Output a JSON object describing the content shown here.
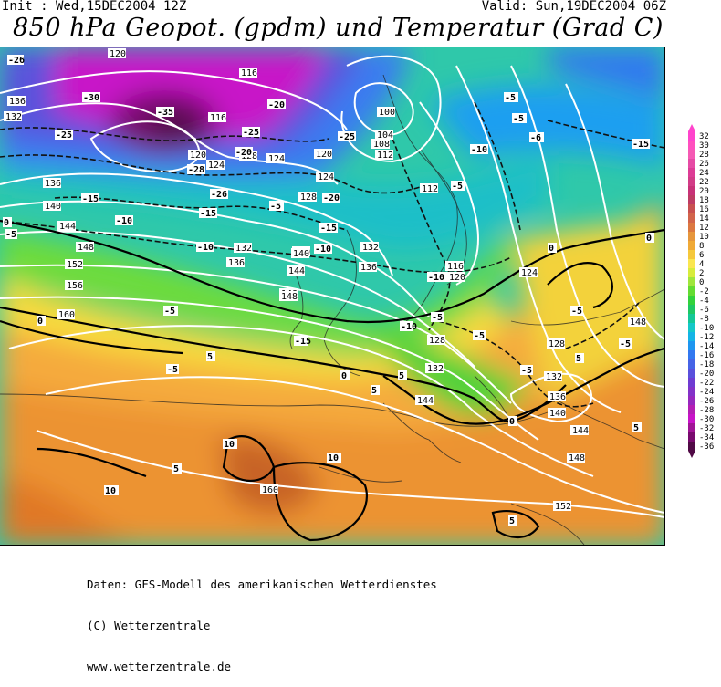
{
  "header": {
    "init": "Init : Wed,15DEC2004 12Z",
    "valid": "Valid: Sun,19DEC2004 06Z",
    "title": "850 hPa Geopot. (gpdm) und Temperatur (Grad C)"
  },
  "footer": {
    "line1": "Daten: GFS-Modell des amerikanischen Wetterdienstes",
    "line2": "(C) Wetterzentrale",
    "line3": "www.wetterzentrale.de"
  },
  "legend": {
    "values": [
      "32",
      "30",
      "28",
      "26",
      "24",
      "22",
      "20",
      "18",
      "16",
      "14",
      "12",
      "10",
      "8",
      "6",
      "4",
      "2",
      "0",
      "-2",
      "-4",
      "-6",
      "-8",
      "-10",
      "-12",
      "-14",
      "-16",
      "-18",
      "-20",
      "-22",
      "-24",
      "-26",
      "-28",
      "-30",
      "-32",
      "-34",
      "-36"
    ],
    "colors": [
      "#ff44cc",
      "#ff50bf",
      "#f55ab4",
      "#e64ba5",
      "#dd3c96",
      "#d23c87",
      "#c83278",
      "#be3c64",
      "#c85050",
      "#d2644b",
      "#dc7841",
      "#e6963c",
      "#f0aa37",
      "#f5c83c",
      "#fae650",
      "#d7ec3c",
      "#a0e63c",
      "#64dc32",
      "#32d23c",
      "#1ec864",
      "#14c896",
      "#14c8c8",
      "#14b4e6",
      "#1e96f0",
      "#3278f0",
      "#4664e6",
      "#5a50dc",
      "#6e3cd2",
      "#8232c8",
      "#9628be",
      "#b41eb4",
      "#c814c8",
      "#a01496",
      "#780a6e",
      "#500a46"
    ]
  },
  "map": {
    "geopotential_labels": [
      "120",
      "116",
      "136",
      "132",
      "116",
      "120",
      "124",
      "128",
      "124",
      "120",
      "100",
      "104",
      "108",
      "112",
      "136",
      "140",
      "144",
      "148",
      "152",
      "156",
      "160",
      "124",
      "128",
      "112",
      "116",
      "120",
      "132",
      "136",
      "140",
      "144",
      "148",
      "136",
      "132",
      "140",
      "148",
      "128",
      "132",
      "144",
      "124",
      "128",
      "132",
      "136",
      "140",
      "144",
      "148",
      "152",
      "160",
      "148"
    ],
    "temperature_labels": [
      "-26",
      "-30",
      "-35",
      "-25",
      "-25",
      "-20",
      "-28",
      "-25",
      "-26",
      "-20",
      "-15",
      "-10",
      "-15",
      "-5",
      "-10",
      "-15",
      "-10",
      "-10",
      "-20",
      "-15",
      "-5",
      "-5",
      "-6",
      "-5",
      "-10",
      "-15",
      "-5",
      "0",
      "-5",
      "-10",
      "-5",
      "-5",
      "0",
      "-5",
      "-5",
      "5",
      "0",
      "5",
      "5",
      "0",
      "-5",
      "-5",
      "0",
      "5",
      "0",
      "10",
      "10",
      "5",
      "10",
      "5",
      "5"
    ]
  }
}
